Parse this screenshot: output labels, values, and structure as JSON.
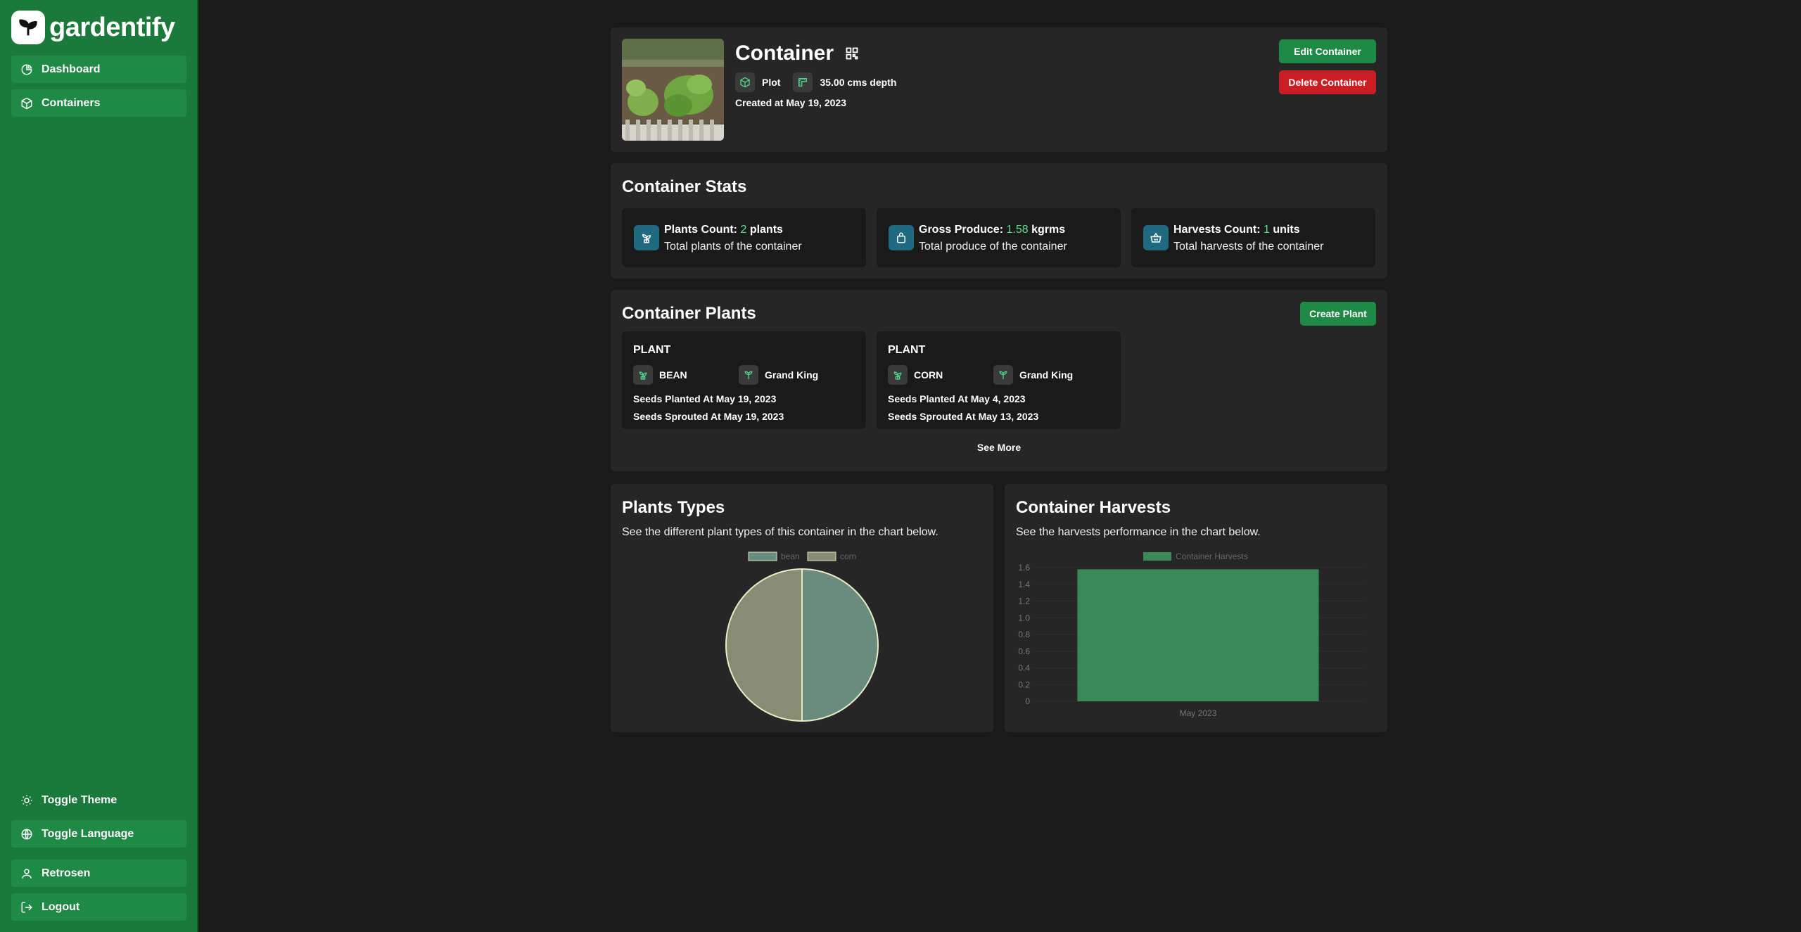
{
  "app": {
    "name": "gardentify"
  },
  "sidebar": {
    "nav": [
      {
        "label": "Dashboard",
        "icon": "chart-pie-icon"
      },
      {
        "label": "Containers",
        "icon": "cube-icon"
      }
    ],
    "bottom": [
      {
        "label": "Toggle Theme",
        "icon": "sun-icon"
      },
      {
        "label": "Toggle Language",
        "icon": "globe-icon"
      },
      {
        "label": "Retrosen",
        "icon": "user-icon"
      },
      {
        "label": "Logout",
        "icon": "logout-icon"
      }
    ]
  },
  "container": {
    "title": "Container",
    "type": "Plot",
    "depth": "35.00 cms depth",
    "created": "Created at May 19, 2023",
    "edit_label": "Edit Container",
    "delete_label": "Delete Container"
  },
  "stats": {
    "title": "Container Stats",
    "items": [
      {
        "label": "Plants Count:",
        "value": "2",
        "unit": "plants",
        "desc": "Total plants of the container",
        "icon": "sprout-icon"
      },
      {
        "label": "Gross Produce:",
        "value": "1.58",
        "unit": "kgrms",
        "desc": "Total produce of the container",
        "icon": "bag-icon"
      },
      {
        "label": "Harvests Count:",
        "value": "1",
        "unit": "units",
        "desc": "Total harvests of the container",
        "icon": "basket-icon"
      }
    ]
  },
  "plants": {
    "title": "Container Plants",
    "create_label": "Create Plant",
    "see_more": "See More",
    "items": [
      {
        "heading": "PLANT",
        "name": "BEAN",
        "variety": "Grand King",
        "planted": "Seeds Planted At May 19, 2023",
        "sprouted": "Seeds Sprouted At May 19, 2023"
      },
      {
        "heading": "PLANT",
        "name": "CORN",
        "variety": "Grand King",
        "planted": "Seeds Planted At May 4, 2023",
        "sprouted": "Seeds Sprouted At May 13, 2023"
      }
    ]
  },
  "plant_types": {
    "title": "Plants Types",
    "subtitle": "See the different plant types of this container in the chart below."
  },
  "harvests": {
    "title": "Container Harvests",
    "subtitle": "See the harvests performance in the chart below."
  },
  "colors": {
    "sidebar": "#1a7a3c",
    "accent": "#1e8a45",
    "danger": "#c81e24",
    "bean": "#6a8c7e",
    "corn": "#878c72",
    "bar": "#3a8a58"
  },
  "chart_data": [
    {
      "type": "pie",
      "categories": [
        "bean",
        "corn"
      ],
      "values": [
        1,
        1
      ],
      "legend": "top"
    },
    {
      "type": "bar",
      "categories": [
        "May 2023"
      ],
      "series": [
        {
          "name": "Container Harvests",
          "values": [
            1.58
          ]
        }
      ],
      "ylim": [
        0,
        1.6
      ],
      "yticks": [
        "0",
        "0.2",
        "0.4",
        "0.6",
        "0.8",
        "1.0",
        "1.2",
        "1.4",
        "1.6"
      ],
      "legend": "top"
    }
  ]
}
